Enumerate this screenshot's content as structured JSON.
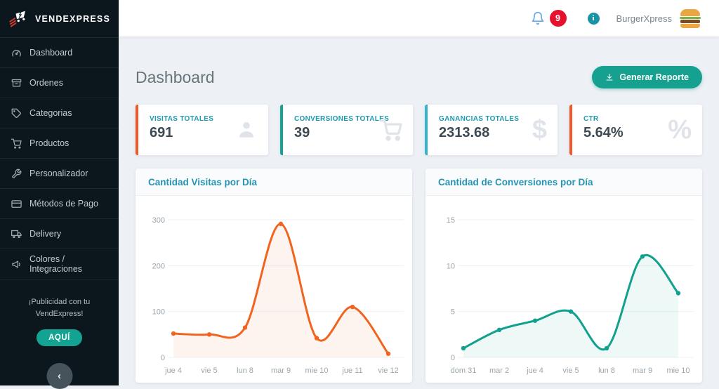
{
  "brand": {
    "name": "VENDEXPRESS"
  },
  "topbar": {
    "notifications_count": "9",
    "info_glyph": "i",
    "user_name": "BurgerXpress"
  },
  "sidebar": {
    "items": [
      {
        "label": "Dashboard"
      },
      {
        "label": "Ordenes"
      },
      {
        "label": "Categorias"
      },
      {
        "label": "Productos"
      },
      {
        "label": "Personalizador"
      },
      {
        "label": "Métodos de Pago"
      },
      {
        "label": "Delivery"
      },
      {
        "label": "Colores / Integraciones"
      }
    ],
    "promo": {
      "line1": "¡Publicidad con tu",
      "line2": "VendExpress!",
      "button": "AQUÍ"
    },
    "collapse_glyph": "‹"
  },
  "page": {
    "title": "Dashboard",
    "report_button": "Generar Reporte"
  },
  "stats": [
    {
      "label": "VISITAS TOTALES",
      "value": "691",
      "icon": "person-icon",
      "accent": "#f0582a"
    },
    {
      "label": "CONVERSIONES TOTALES",
      "value": "39",
      "icon": "cart-icon",
      "accent": "#16a391"
    },
    {
      "label": "GANANCIAS TOTALES",
      "value": "2313.68",
      "icon": "dollar-icon",
      "accent": "#35b3cd",
      "glyph": "$"
    },
    {
      "label": "CTR",
      "value": "5.64%",
      "icon": "percent-icon",
      "accent": "#f0582a",
      "glyph": "%"
    }
  ],
  "chart_data": [
    {
      "type": "line",
      "title": "Cantidad Visitas por Día",
      "categories": [
        "jue 4",
        "vie 5",
        "lun 8",
        "mar 9",
        "mie 10",
        "jue 11",
        "vie 12"
      ],
      "values": [
        52,
        50,
        65,
        291,
        42,
        110,
        8
      ],
      "ylim": [
        0,
        300
      ],
      "yticks": [
        0,
        100,
        200,
        300
      ],
      "color": "#f1641f",
      "fill": "rgba(241,100,31,0.07)",
      "grid": true,
      "legend": "none"
    },
    {
      "type": "line",
      "title": "Cantidad de Conversiones por Día",
      "categories": [
        "dom 31",
        "mar 2",
        "jue 4",
        "vie 5",
        "lun 8",
        "mar 9",
        "mie 10"
      ],
      "values": [
        1,
        3,
        4,
        5,
        1,
        11,
        7
      ],
      "ylim": [
        0,
        15
      ],
      "yticks": [
        0,
        5,
        10,
        15
      ],
      "color": "#12a18e",
      "fill": "rgba(18,161,142,0.07)",
      "grid": true,
      "legend": "none"
    }
  ],
  "colors": {
    "sidebar_bg": "#0c161d",
    "teal_accent": "#16a090",
    "badge_red": "#e5112d",
    "card_label": "#1e9ab2",
    "tick_label": "#9aa6ae"
  }
}
